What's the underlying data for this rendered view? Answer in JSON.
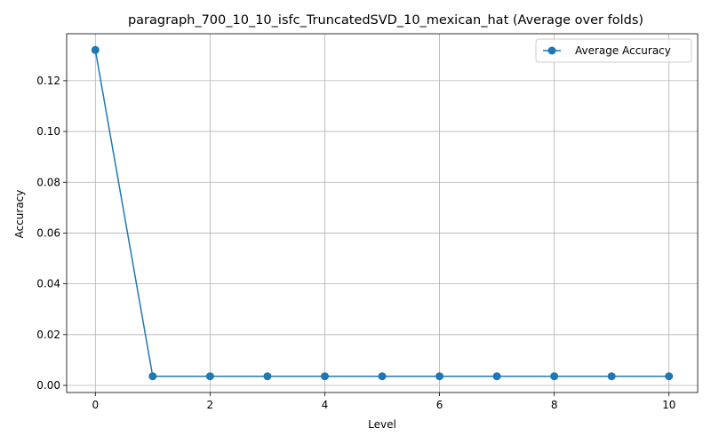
{
  "chart_data": {
    "type": "line",
    "title": "paragraph_700_10_10_isfc_TruncatedSVD_10_mexican_hat (Average over folds)",
    "xlabel": "Level",
    "ylabel": "Accuracy",
    "x": [
      0,
      1,
      2,
      3,
      4,
      5,
      6,
      7,
      8,
      9,
      10
    ],
    "series": [
      {
        "name": "Average Accuracy",
        "color": "#1f77b4",
        "marker": "circle",
        "values": [
          0.1321,
          0.0036,
          0.0036,
          0.0036,
          0.0036,
          0.0036,
          0.0036,
          0.0036,
          0.0036,
          0.0036,
          0.0036
        ]
      }
    ],
    "xlim": [
      -0.5,
      10.5
    ],
    "ylim": [
      -0.0028,
      0.1385
    ],
    "xticks": [
      0,
      2,
      4,
      6,
      8,
      10
    ],
    "xtick_labels": [
      "0",
      "2",
      "4",
      "6",
      "8",
      "10"
    ],
    "yticks": [
      0.0,
      0.02,
      0.04,
      0.06,
      0.08,
      0.1,
      0.12
    ],
    "ytick_labels": [
      "0.00",
      "0.02",
      "0.04",
      "0.06",
      "0.08",
      "0.10",
      "0.12"
    ],
    "grid": true,
    "legend_position": "top-right"
  }
}
